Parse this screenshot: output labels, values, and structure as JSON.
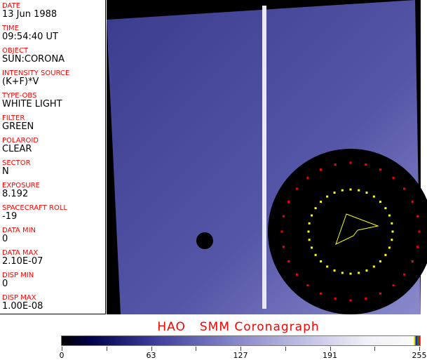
{
  "fields": [
    {
      "label": "DATE",
      "value": "13 Jun 1988"
    },
    {
      "label": "TIME",
      "value": "09:54:40 UT"
    },
    {
      "label": "OBJECT",
      "value": "SUN:CORONA"
    },
    {
      "label": "INTENSITY SOURCE",
      "value": "(K+F)*V"
    },
    {
      "label": "TYPE-OBS",
      "value": "WHITE LIGHT"
    },
    {
      "label": "FILTER",
      "value": "GREEN"
    },
    {
      "label": "POLAROID",
      "value": "CLEAR"
    },
    {
      "label": "SECTOR",
      "value": "N"
    },
    {
      "label": "EXPOSURE",
      "value": "8.192"
    },
    {
      "label": "SPACECRAFT ROLL",
      "value": "-19"
    },
    {
      "label": "DATA MIN",
      "value": "0"
    },
    {
      "label": "DATA MAX",
      "value": "2.10E-07"
    },
    {
      "label": "DISP MIN",
      "value": "0"
    },
    {
      "label": "DISP MAX",
      "value": "1.00E-08"
    }
  ],
  "title": {
    "org": "HAO",
    "instrument": "SMM Coronagraph"
  },
  "colorbar": {
    "ticks": [
      "0",
      "63",
      "127",
      "191",
      "255"
    ],
    "min": 0,
    "max": 255
  }
}
